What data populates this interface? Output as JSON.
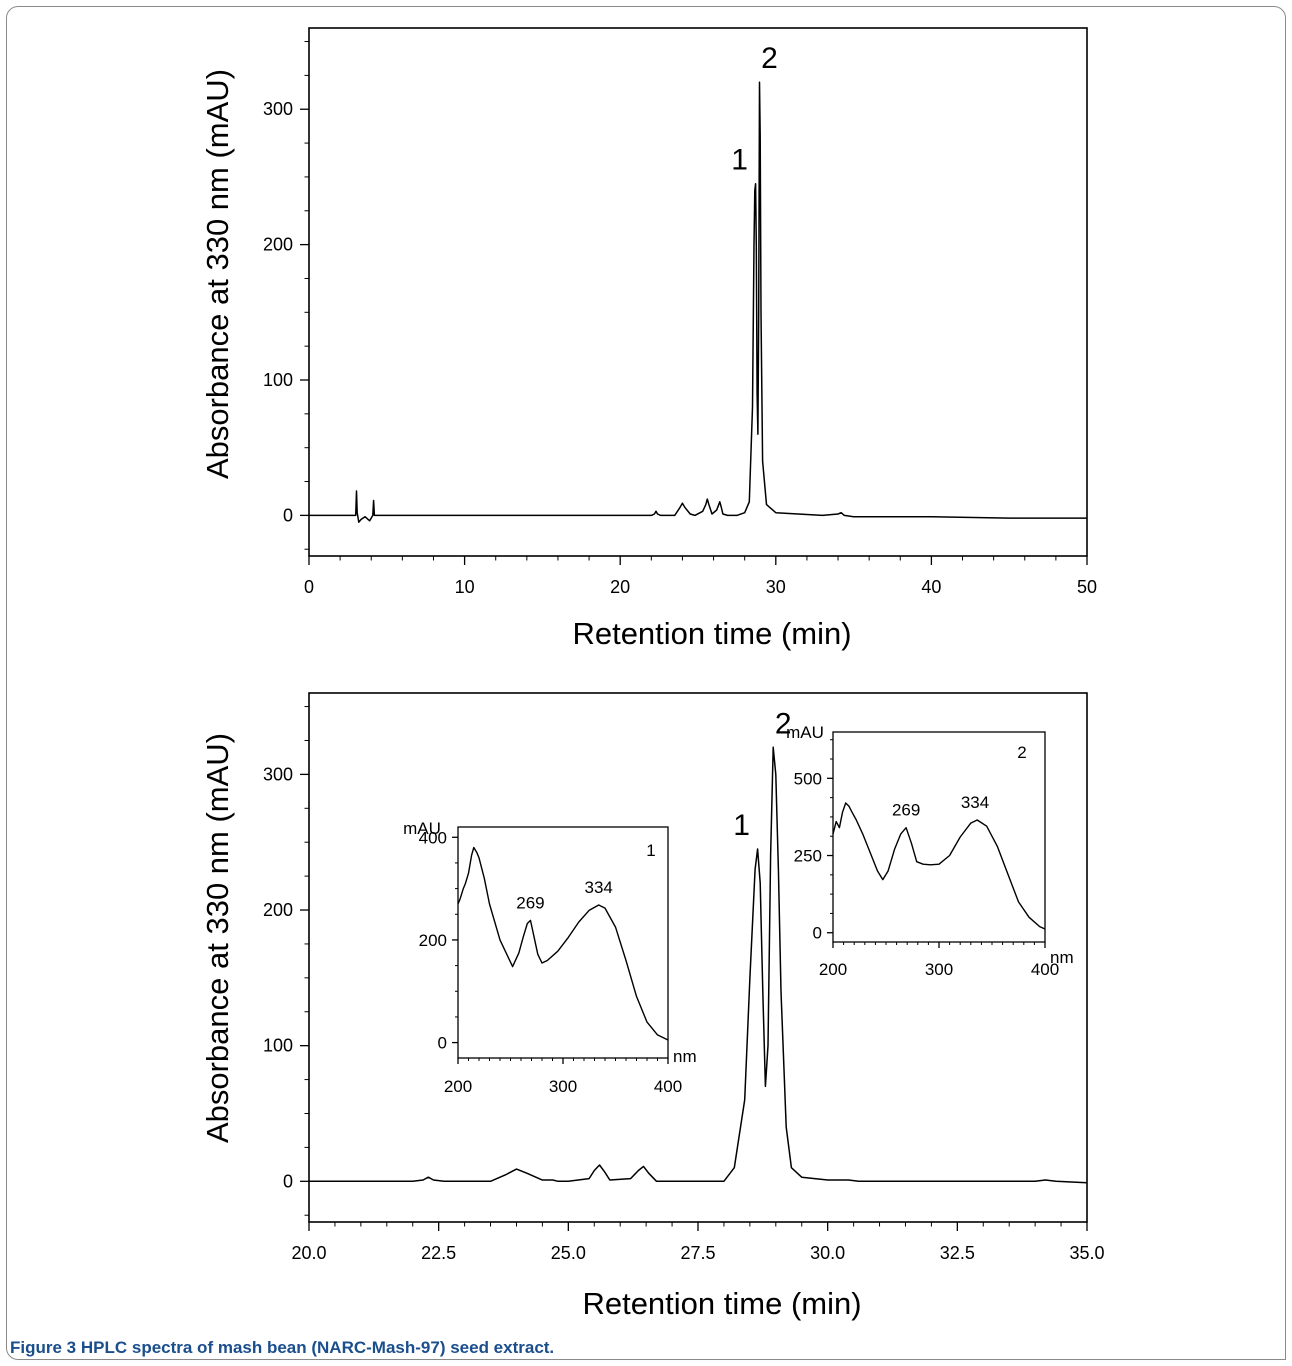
{
  "caption": {
    "label": "Figure 3",
    "text": "HPLC spectra of mash bean (NARC-Mash-97) seed extract."
  },
  "colors": {
    "caption_label": "#1a4e8c",
    "line": "#000000"
  },
  "chart_data": [
    {
      "type": "line",
      "title": "",
      "xlabel": "Retention time (min)",
      "ylabel": "Absorbance at 330 nm (mAU)",
      "xlim": [
        0,
        50
      ],
      "ylim": [
        -30,
        360
      ],
      "xticks": [
        0,
        10,
        20,
        30,
        40,
        50
      ],
      "xtick_labels": [
        "0",
        "10",
        "20",
        "30",
        "40",
        "50"
      ],
      "yticks": [
        0,
        100,
        200,
        300
      ],
      "ytick_labels": [
        "0",
        "100",
        "200",
        "300"
      ],
      "peak_labels": [
        {
          "text": "1",
          "x": 28.7,
          "y": 245
        },
        {
          "text": "2",
          "x": 28.95,
          "y": 320
        }
      ],
      "series": [
        {
          "x": [
            0,
            3.0,
            3.05,
            3.1,
            3.2,
            3.35,
            3.6,
            3.9,
            4.1,
            4.15,
            4.2,
            4.5,
            8,
            15,
            20,
            22.0,
            22.2,
            22.3,
            22.4,
            22.6,
            23.5,
            23.85,
            24.0,
            24.15,
            24.5,
            24.8,
            25.3,
            25.5,
            25.6,
            25.7,
            25.9,
            26.2,
            26.4,
            26.5,
            26.6,
            26.9,
            27.5,
            28.0,
            28.3,
            28.5,
            28.6,
            28.65,
            28.7,
            28.75,
            28.8,
            28.85,
            28.9,
            28.95,
            29.0,
            29.05,
            29.15,
            29.4,
            30,
            33,
            34.0,
            34.2,
            34.4,
            35,
            40,
            45,
            50
          ],
          "y": [
            0,
            0,
            18,
            2,
            -5,
            -3,
            -1,
            -4,
            0,
            11,
            0,
            0,
            0,
            0,
            0,
            0,
            1,
            3,
            1,
            0,
            0,
            6,
            9,
            6,
            1,
            0,
            3,
            8,
            12,
            8,
            1,
            4,
            10,
            6,
            1,
            0,
            0,
            2,
            10,
            80,
            200,
            240,
            245,
            200,
            90,
            60,
            150,
            320,
            280,
            150,
            40,
            8,
            2,
            0,
            1,
            2,
            0,
            -1,
            -1,
            -2,
            -2
          ]
        }
      ]
    },
    {
      "type": "line",
      "title": "",
      "xlabel": "Retention time (min)",
      "ylabel": "Absorbance at 330 nm (mAU)",
      "xlim": [
        20,
        35
      ],
      "ylim": [
        -30,
        360
      ],
      "xticks": [
        20,
        22.5,
        25,
        27.5,
        30,
        32.5,
        35
      ],
      "xtick_labels": [
        "20.0",
        "22.5",
        "25.0",
        "27.5",
        "30.0",
        "32.5",
        "35.0"
      ],
      "yticks": [
        0,
        100,
        200,
        300
      ],
      "ytick_labels": [
        "0",
        "100",
        "200",
        "300"
      ],
      "peak_labels": [
        {
          "text": "1",
          "x": 28.65,
          "y": 245
        },
        {
          "text": "2",
          "x": 28.95,
          "y": 320
        }
      ],
      "series": [
        {
          "x": [
            20,
            22.0,
            22.2,
            22.3,
            22.4,
            22.6,
            23.5,
            23.8,
            24.0,
            24.2,
            24.5,
            24.7,
            24.8,
            25.0,
            25.4,
            25.5,
            25.6,
            25.7,
            25.8,
            26.2,
            26.35,
            26.45,
            26.55,
            26.7,
            27.5,
            28.0,
            28.2,
            28.4,
            28.5,
            28.6,
            28.65,
            28.7,
            28.75,
            28.8,
            28.85,
            28.9,
            28.95,
            29.0,
            29.05,
            29.1,
            29.2,
            29.3,
            29.5,
            30.0,
            30.4,
            30.6,
            33,
            34.0,
            34.2,
            34.4,
            35
          ],
          "y": [
            0,
            0,
            1,
            3,
            1,
            0,
            0,
            5,
            9,
            6,
            1,
            1,
            0,
            0,
            2,
            8,
            12,
            7,
            1,
            2,
            8,
            11,
            6,
            0,
            0,
            0,
            10,
            60,
            150,
            230,
            245,
            220,
            140,
            70,
            100,
            240,
            320,
            300,
            230,
            140,
            40,
            10,
            3,
            1,
            1,
            0,
            0,
            0,
            1,
            0,
            -1
          ]
        }
      ]
    },
    {
      "type": "line",
      "title": "",
      "inset_label": "1",
      "xlabel": "nm",
      "ylabel": "mAU",
      "xlim": [
        200,
        400
      ],
      "ylim": [
        -30,
        420
      ],
      "xticks": [
        200,
        300,
        400
      ],
      "xtick_labels": [
        "200",
        "300",
        "400"
      ],
      "yticks": [
        0,
        200,
        400
      ],
      "ytick_labels": [
        "0",
        "200",
        "400"
      ],
      "annotations": [
        {
          "text": "269",
          "x": 269,
          "y": 238
        },
        {
          "text": "334",
          "x": 334,
          "y": 268
        }
      ],
      "series": [
        {
          "x": [
            200,
            202,
            205,
            207,
            210,
            213,
            215,
            218,
            220,
            225,
            230,
            240,
            252,
            258,
            262,
            266,
            269,
            272,
            276,
            280,
            285,
            295,
            305,
            315,
            325,
            334,
            340,
            350,
            360,
            370,
            380,
            390,
            400
          ],
          "y": [
            270,
            280,
            300,
            310,
            330,
            365,
            380,
            370,
            360,
            320,
            270,
            200,
            148,
            175,
            205,
            232,
            238,
            210,
            172,
            155,
            160,
            178,
            205,
            235,
            258,
            268,
            262,
            225,
            160,
            90,
            40,
            15,
            5
          ]
        }
      ]
    },
    {
      "type": "line",
      "title": "",
      "inset_label": "2",
      "xlabel": "nm",
      "ylabel": "mAU",
      "xlim": [
        200,
        400
      ],
      "ylim": [
        -30,
        650
      ],
      "xticks": [
        200,
        300,
        400
      ],
      "xtick_labels": [
        "200",
        "300",
        "400"
      ],
      "yticks": [
        0,
        250,
        500
      ],
      "ytick_labels": [
        "0",
        "250",
        "500"
      ],
      "annotations": [
        {
          "text": "269",
          "x": 269,
          "y": 340
        },
        {
          "text": "334",
          "x": 334,
          "y": 365
        }
      ],
      "series": [
        {
          "x": [
            200,
            203,
            206,
            209,
            212,
            215,
            218,
            222,
            228,
            235,
            242,
            247,
            252,
            258,
            264,
            269,
            274,
            279,
            285,
            292,
            300,
            310,
            320,
            330,
            336,
            345,
            355,
            365,
            375,
            385,
            395,
            400
          ],
          "y": [
            320,
            360,
            340,
            390,
            420,
            410,
            390,
            365,
            320,
            260,
            200,
            172,
            200,
            270,
            320,
            340,
            290,
            230,
            222,
            220,
            222,
            250,
            310,
            355,
            365,
            345,
            280,
            190,
            100,
            50,
            20,
            12
          ]
        }
      ]
    }
  ]
}
